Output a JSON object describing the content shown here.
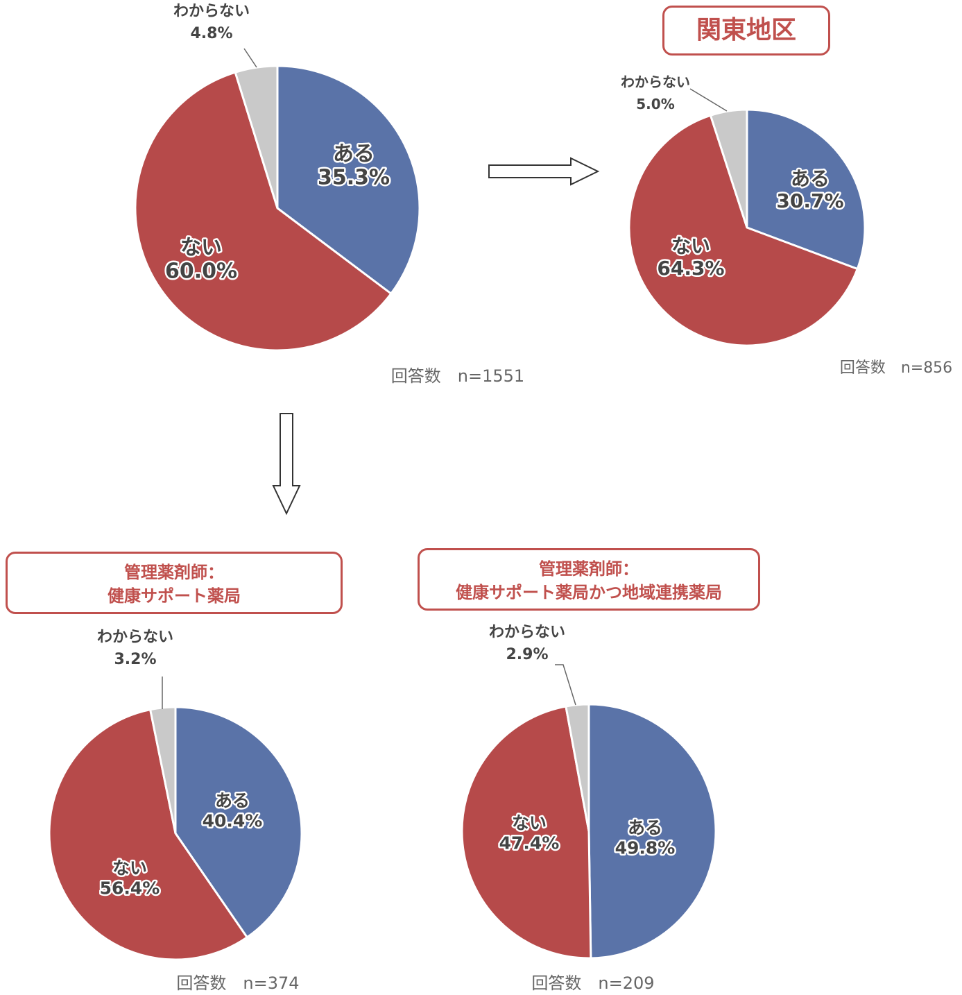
{
  "colors": {
    "aru": "#5a73a8",
    "nai": "#b64a4a",
    "wakaranai": "#c9c9c9",
    "label_text": "#444444",
    "title_red": "#c0504d"
  },
  "charts_titles": {
    "kanto": "関東地区",
    "health_line1": "管理薬剤師：",
    "health_line2": "健康サポート薬局",
    "both_line1": "管理薬剤師：",
    "both_line2": "健康サポート薬局かつ地域連携薬局"
  },
  "chart_data": [
    {
      "id": "overall",
      "type": "pie",
      "title": "",
      "n_label": "回答数　n=1551",
      "slices": [
        {
          "name": "ある",
          "value": 35.3,
          "label": "35.3%"
        },
        {
          "name": "ない",
          "value": 60.0,
          "label": "60.0%"
        },
        {
          "name": "わからない",
          "value": 4.8,
          "label": "4.8%"
        }
      ]
    },
    {
      "id": "kanto",
      "type": "pie",
      "title": "関東地区",
      "n_label": "回答数　n=856",
      "slices": [
        {
          "name": "ある",
          "value": 30.7,
          "label": "30.7%"
        },
        {
          "name": "ない",
          "value": 64.3,
          "label": "64.3%"
        },
        {
          "name": "わからない",
          "value": 5.0,
          "label": "5.0%"
        }
      ]
    },
    {
      "id": "health",
      "type": "pie",
      "title": "管理薬剤師：健康サポート薬局",
      "n_label": "回答数　n=374",
      "slices": [
        {
          "name": "ある",
          "value": 40.4,
          "label": "40.4%"
        },
        {
          "name": "ない",
          "value": 56.4,
          "label": "56.4%"
        },
        {
          "name": "わからない",
          "value": 3.2,
          "label": "3.2%"
        }
      ]
    },
    {
      "id": "both",
      "type": "pie",
      "title": "管理薬剤師：健康サポート薬局かつ地域連携薬局",
      "n_label": "回答数　n=209",
      "slices": [
        {
          "name": "ある",
          "value": 49.8,
          "label": "49.8%"
        },
        {
          "name": "ない",
          "value": 47.4,
          "label": "47.4%"
        },
        {
          "name": "わからない",
          "value": 2.9,
          "label": "2.9%"
        }
      ]
    }
  ]
}
